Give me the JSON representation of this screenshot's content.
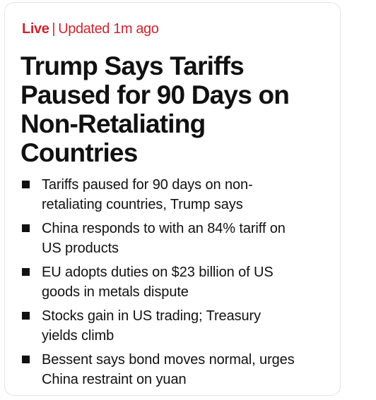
{
  "status": {
    "live_label": "Live",
    "separator": "|",
    "updated_label": "Updated 1m ago"
  },
  "headline": {
    "lines": [
      "Trump Says Tariffs",
      "Paused for 90 Days on",
      "Non-Retaliating",
      "Countries"
    ]
  },
  "bullets": [
    {
      "lines": [
        "Tariffs paused for 90 days on non-",
        "retaliating countries, Trump says"
      ]
    },
    {
      "lines": [
        "China responds to with an 84% tariff on",
        "US products"
      ]
    },
    {
      "lines": [
        "EU adopts duties on $23 billion of US",
        "goods in metals dispute"
      ]
    },
    {
      "lines": [
        "Stocks gain in US trading; Treasury",
        "yields climb"
      ]
    },
    {
      "lines": [
        "Bessent says bond moves normal, urges",
        "China restraint on yuan"
      ]
    }
  ],
  "colors": {
    "live": "#d1242f",
    "text": "#111111",
    "card_border": "#e3e3e3"
  }
}
